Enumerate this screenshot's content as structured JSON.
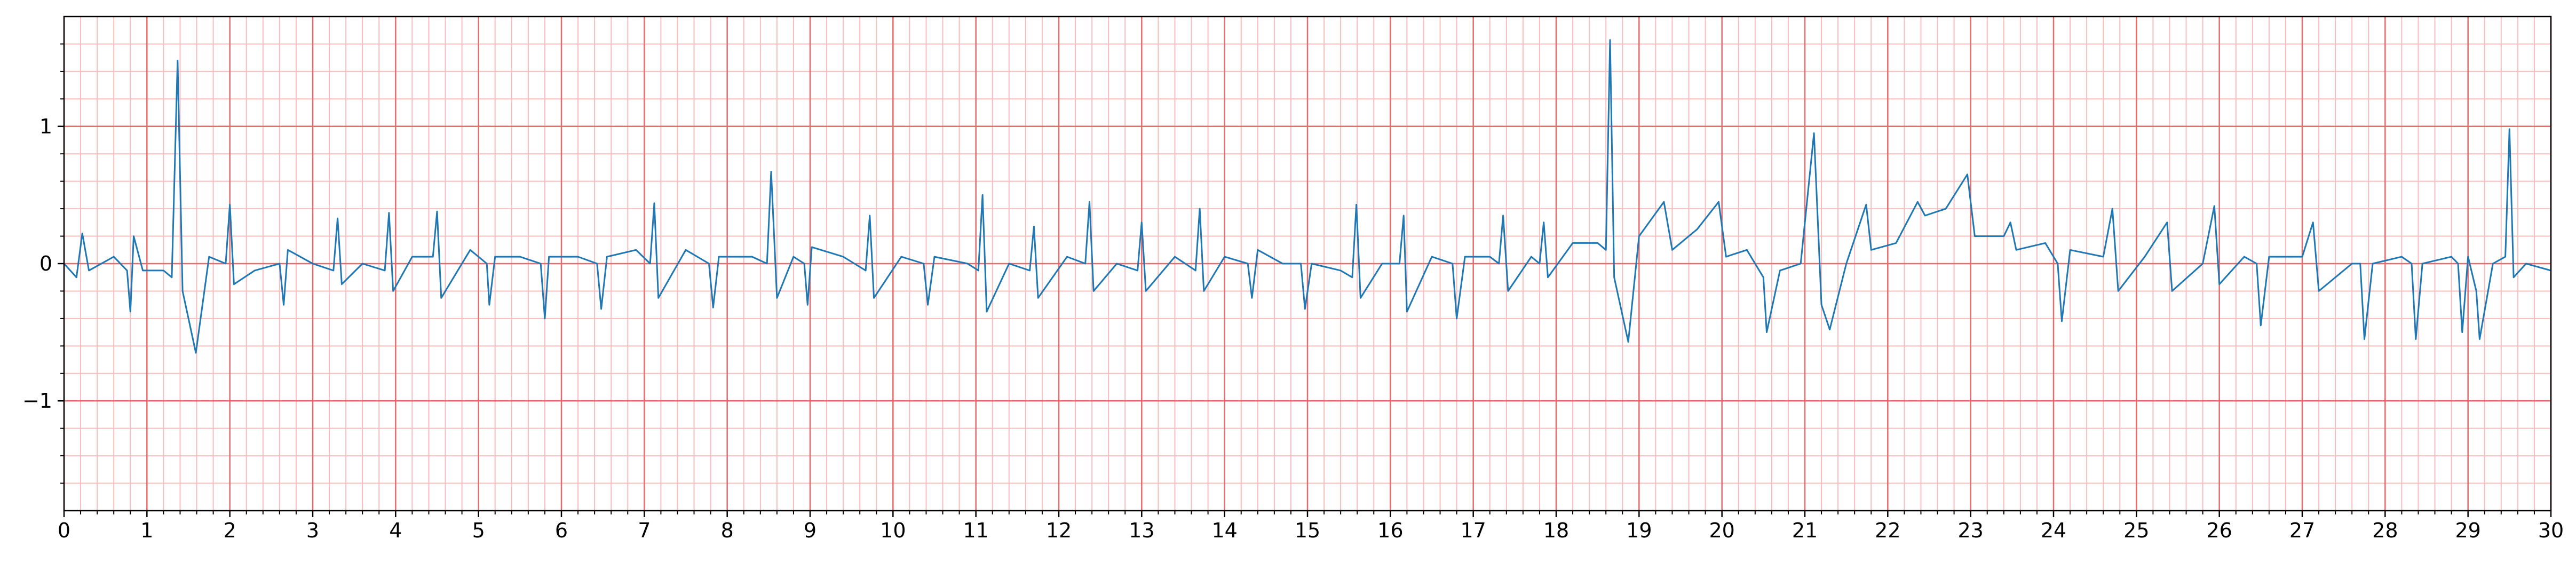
{
  "chart_data": {
    "type": "line",
    "x": [
      0,
      0.15,
      0.22,
      0.3,
      0.6,
      0.76,
      0.8,
      0.84,
      0.95,
      1.2,
      1.3,
      1.37,
      1.43,
      1.59,
      1.75,
      1.95,
      2.0,
      2.05,
      2.3,
      2.6,
      2.65,
      2.7,
      3.0,
      3.25,
      3.3,
      3.35,
      3.6,
      3.87,
      3.92,
      3.97,
      4.2,
      4.45,
      4.5,
      4.55,
      4.9,
      5.1,
      5.13,
      5.2,
      5.5,
      5.75,
      5.8,
      5.85,
      6.2,
      6.43,
      6.48,
      6.55,
      6.9,
      7.07,
      7.12,
      7.17,
      7.5,
      7.78,
      7.83,
      7.9,
      8.3,
      8.48,
      8.53,
      8.6,
      8.8,
      8.93,
      8.97,
      9.02,
      9.4,
      9.67,
      9.72,
      9.77,
      10.1,
      10.37,
      10.42,
      10.5,
      10.9,
      11.03,
      11.08,
      11.13,
      11.4,
      11.65,
      11.7,
      11.75,
      12.1,
      12.32,
      12.37,
      12.42,
      12.7,
      12.95,
      13.0,
      13.05,
      13.4,
      13.65,
      13.7,
      13.75,
      14.0,
      14.28,
      14.33,
      14.4,
      14.7,
      14.92,
      14.97,
      15.05,
      15.4,
      15.54,
      15.59,
      15.64,
      15.9,
      16.11,
      16.16,
      16.2,
      16.5,
      16.75,
      16.8,
      16.9,
      17.2,
      17.31,
      17.36,
      17.42,
      17.7,
      17.8,
      17.85,
      17.9,
      18.2,
      18.5,
      18.6,
      18.65,
      18.7,
      18.87,
      19.0,
      19.3,
      19.4,
      19.7,
      19.96,
      20.05,
      20.3,
      20.5,
      20.54,
      20.7,
      20.95,
      21.11,
      21.2,
      21.3,
      21.5,
      21.74,
      21.8,
      22.1,
      22.36,
      22.45,
      22.7,
      22.96,
      23.05,
      23.4,
      23.48,
      23.55,
      23.9,
      24.05,
      24.1,
      24.2,
      24.6,
      24.71,
      24.78,
      25.1,
      25.37,
      25.43,
      25.8,
      25.94,
      26.0,
      26.3,
      26.45,
      26.5,
      26.6,
      27.0,
      27.13,
      27.2,
      27.6,
      27.7,
      27.75,
      27.85,
      28.2,
      28.32,
      28.37,
      28.45,
      28.8,
      28.88,
      28.93,
      29.0,
      29.1,
      29.14,
      29.3,
      29.45,
      29.5,
      29.55,
      29.7,
      30
    ],
    "series": [
      {
        "color": "#1f77b4",
        "values": [
          0,
          -0.1,
          0.22,
          -0.05,
          0.05,
          -0.05,
          -0.35,
          0.2,
          -0.05,
          -0.05,
          -0.1,
          1.48,
          -0.2,
          -0.65,
          0.05,
          0.0,
          0.43,
          -0.15,
          -0.05,
          0.0,
          -0.3,
          0.1,
          0.0,
          -0.05,
          0.33,
          -0.15,
          0.0,
          -0.05,
          0.37,
          -0.2,
          0.05,
          0.05,
          0.38,
          -0.25,
          0.1,
          0.0,
          -0.3,
          0.05,
          0.05,
          0.0,
          -0.4,
          0.05,
          0.05,
          0.0,
          -0.33,
          0.05,
          0.1,
          0.0,
          0.44,
          -0.25,
          0.1,
          0.0,
          -0.32,
          0.05,
          0.05,
          0.0,
          0.67,
          -0.25,
          0.05,
          0.0,
          -0.3,
          0.12,
          0.05,
          -0.05,
          0.35,
          -0.25,
          0.05,
          0.0,
          -0.3,
          0.05,
          0.0,
          -0.05,
          0.5,
          -0.35,
          0.0,
          -0.05,
          0.27,
          -0.25,
          0.05,
          0.0,
          0.45,
          -0.2,
          0.0,
          -0.05,
          0.3,
          -0.2,
          0.05,
          -0.05,
          0.4,
          -0.2,
          0.05,
          0.0,
          -0.25,
          0.1,
          0.0,
          0.0,
          -0.33,
          0.0,
          -0.05,
          -0.1,
          0.43,
          -0.25,
          0.0,
          0.0,
          0.35,
          -0.35,
          0.05,
          0.0,
          -0.4,
          0.05,
          0.05,
          0.0,
          0.35,
          -0.2,
          0.05,
          0.0,
          0.3,
          -0.1,
          0.15,
          0.15,
          0.1,
          1.63,
          -0.1,
          -0.57,
          0.2,
          0.45,
          0.1,
          0.25,
          0.45,
          0.05,
          0.1,
          -0.1,
          -0.5,
          -0.05,
          0.0,
          0.95,
          -0.3,
          -0.48,
          0.0,
          0.43,
          0.1,
          0.15,
          0.45,
          0.35,
          0.4,
          0.65,
          0.2,
          0.2,
          0.3,
          0.1,
          0.15,
          0.0,
          -0.42,
          0.1,
          0.05,
          0.4,
          -0.2,
          0.05,
          0.3,
          -0.2,
          0.0,
          0.42,
          -0.15,
          0.05,
          0.0,
          -0.45,
          0.05,
          0.05,
          0.3,
          -0.2,
          0.0,
          0.0,
          -0.55,
          0.0,
          0.05,
          0.0,
          -0.55,
          0.0,
          0.05,
          0.0,
          -0.5,
          0.05,
          -0.2,
          -0.55,
          0.0,
          0.05,
          0.98,
          -0.1,
          0.0,
          -0.05
        ]
      }
    ],
    "xlim": [
      0,
      30
    ],
    "ylim": [
      -1.8,
      1.8
    ],
    "xticks": [
      0,
      1,
      2,
      3,
      4,
      5,
      6,
      7,
      8,
      9,
      10,
      11,
      12,
      13,
      14,
      15,
      16,
      17,
      18,
      19,
      20,
      21,
      22,
      23,
      24,
      25,
      26,
      27,
      28,
      29,
      30
    ],
    "yticks": [
      {
        "value": -1,
        "label": "−1"
      },
      0,
      1
    ],
    "grid": true
  }
}
